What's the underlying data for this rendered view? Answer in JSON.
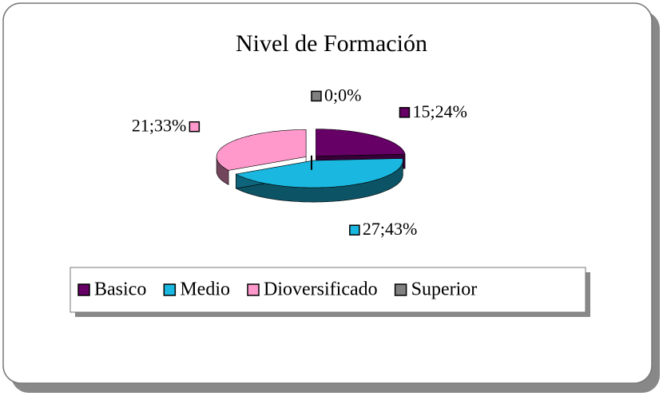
{
  "chart_data": {
    "type": "pie",
    "title": "Nivel de Formación",
    "categories": [
      "Basico",
      "Medio",
      "Dioversificado",
      "Superior"
    ],
    "values": [
      15,
      27,
      21,
      0
    ],
    "value_labels": [
      "15;24%",
      "27;43%",
      "21;33%",
      "0;0%"
    ],
    "colors": [
      "#660066",
      "#1ab8e0",
      "#ff99cc",
      "#808080"
    ],
    "legend": "bottom"
  }
}
